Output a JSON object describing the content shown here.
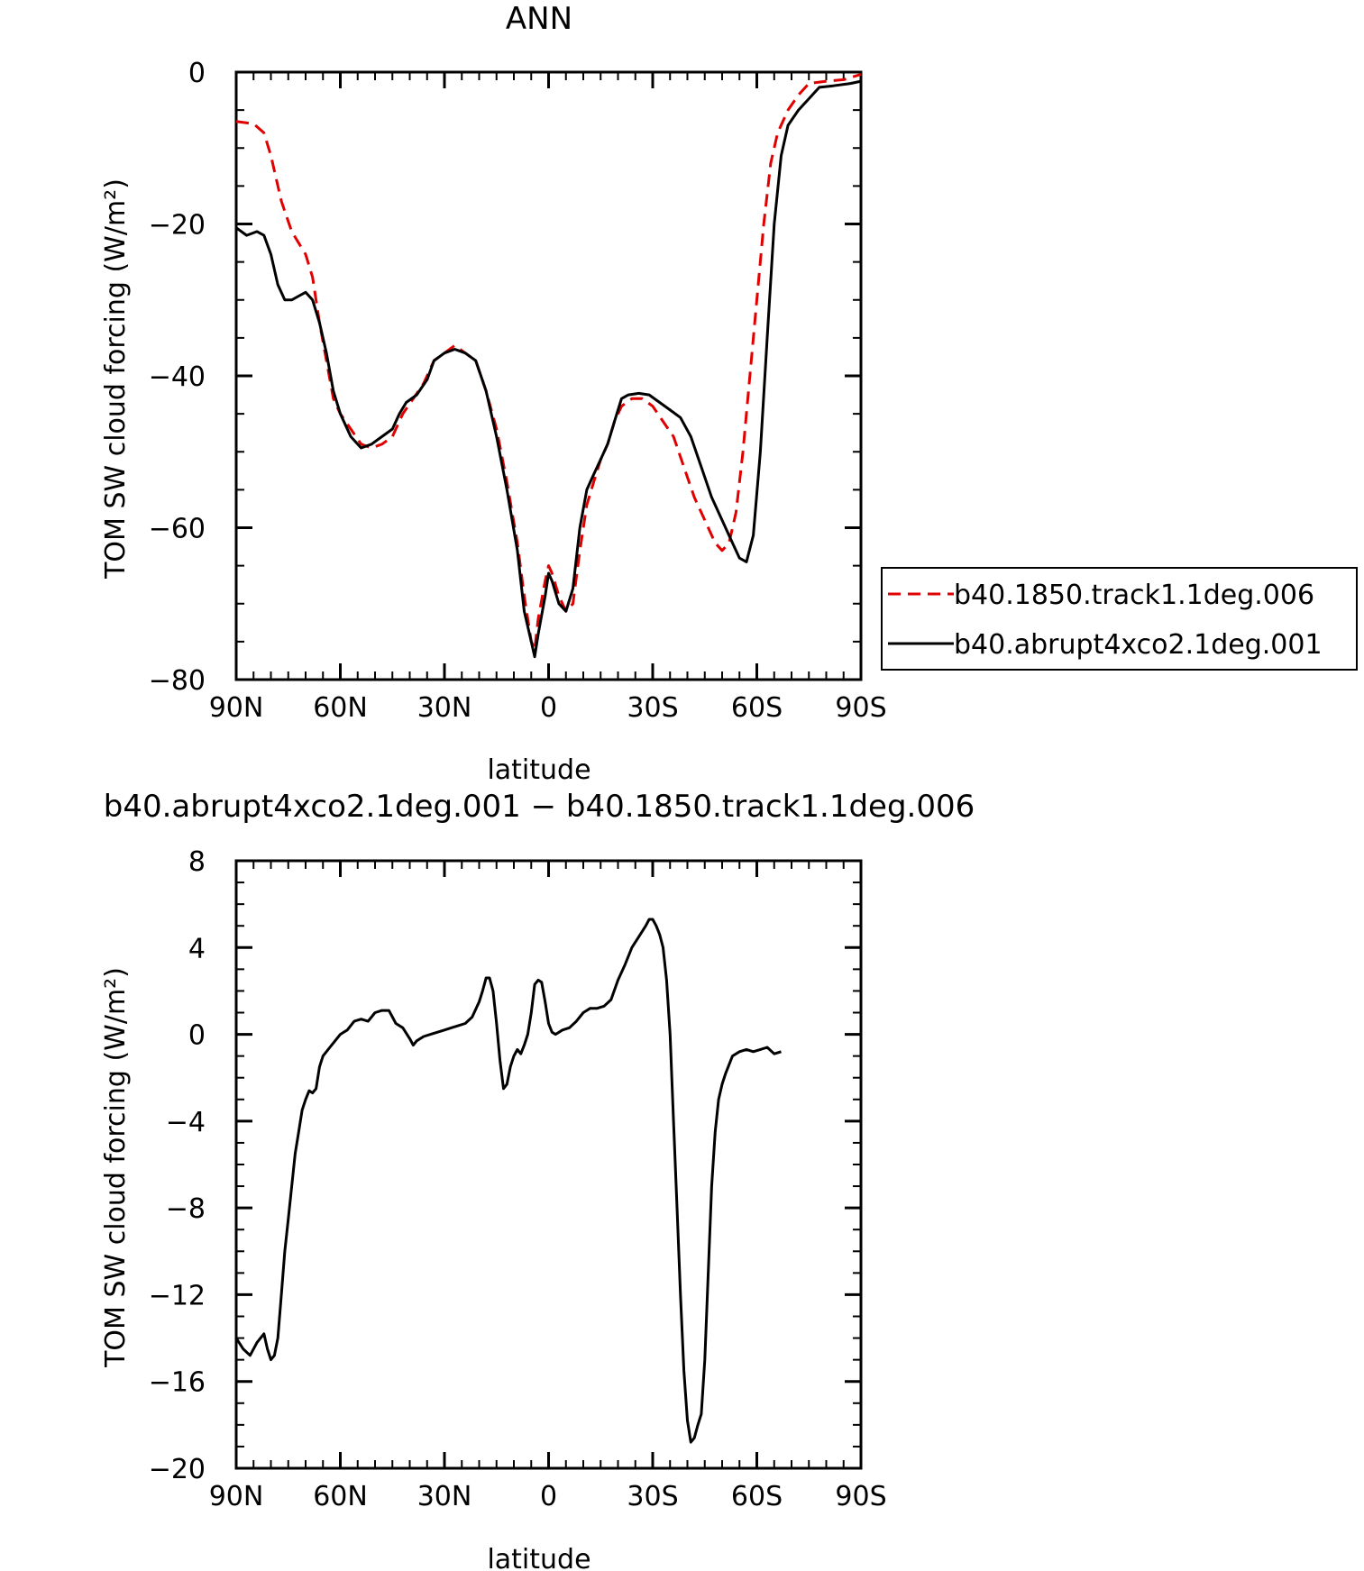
{
  "chart_data": [
    {
      "type": "line",
      "title": "ANN",
      "xlabel": "latitude",
      "ylabel": "TOM SW cloud forcing (W/m²)",
      "xlim": [
        90,
        -90
      ],
      "ylim": [
        -80,
        0
      ],
      "xticks": [
        {
          "v": 90,
          "label": "90N"
        },
        {
          "v": 60,
          "label": "60N"
        },
        {
          "v": 30,
          "label": "30N"
        },
        {
          "v": 0,
          "label": "0"
        },
        {
          "v": -30,
          "label": "30S"
        },
        {
          "v": -60,
          "label": "60S"
        },
        {
          "v": -90,
          "label": "90S"
        }
      ],
      "yticks": [
        {
          "v": 0,
          "label": "0"
        },
        {
          "v": -20,
          "label": "−20"
        },
        {
          "v": -40,
          "label": "−40"
        },
        {
          "v": -60,
          "label": "−60"
        },
        {
          "v": -80,
          "label": "−80"
        }
      ],
      "legend_position": "right",
      "series": [
        {
          "name": "b40.1850.track1.1deg.006",
          "color": "#e00000",
          "dash": "dashed",
          "points": [
            [
              90,
              -6.5
            ],
            [
              85,
              -6.8
            ],
            [
              82,
              -8
            ],
            [
              80,
              -11
            ],
            [
              77,
              -17
            ],
            [
              74,
              -21
            ],
            [
              70,
              -24
            ],
            [
              68,
              -27
            ],
            [
              66,
              -33
            ],
            [
              64,
              -38
            ],
            [
              62,
              -43
            ],
            [
              60,
              -45
            ],
            [
              57,
              -47
            ],
            [
              54,
              -49
            ],
            [
              51,
              -49.5
            ],
            [
              48,
              -49
            ],
            [
              45,
              -48
            ],
            [
              42,
              -45
            ],
            [
              39,
              -43
            ],
            [
              36,
              -41
            ],
            [
              33,
              -38
            ],
            [
              30,
              -37
            ],
            [
              27,
              -36
            ],
            [
              24,
              -37
            ],
            [
              21,
              -38
            ],
            [
              18,
              -42
            ],
            [
              15,
              -47
            ],
            [
              12,
              -54
            ],
            [
              9,
              -62
            ],
            [
              7,
              -69
            ],
            [
              5,
              -75
            ],
            [
              4,
              -76
            ],
            [
              3,
              -72
            ],
            [
              1,
              -67
            ],
            [
              0,
              -65
            ],
            [
              -1,
              -66
            ],
            [
              -3,
              -69
            ],
            [
              -5,
              -71
            ],
            [
              -7,
              -70
            ],
            [
              -9,
              -63
            ],
            [
              -11,
              -57
            ],
            [
              -13,
              -54
            ],
            [
              -15,
              -51
            ],
            [
              -17,
              -49
            ],
            [
              -19,
              -46
            ],
            [
              -21,
              -44
            ],
            [
              -24,
              -43
            ],
            [
              -27,
              -43
            ],
            [
              -30,
              -44
            ],
            [
              -33,
              -46
            ],
            [
              -36,
              -48
            ],
            [
              -39,
              -52
            ],
            [
              -42,
              -56
            ],
            [
              -45,
              -59
            ],
            [
              -48,
              -62
            ],
            [
              -50,
              -63
            ],
            [
              -52,
              -62
            ],
            [
              -54,
              -58
            ],
            [
              -56,
              -50
            ],
            [
              -58,
              -40
            ],
            [
              -60,
              -30
            ],
            [
              -62,
              -20
            ],
            [
              -64,
              -12
            ],
            [
              -66,
              -8
            ],
            [
              -69,
              -5
            ],
            [
              -72,
              -3
            ],
            [
              -75,
              -1.5
            ],
            [
              -80,
              -1.2
            ],
            [
              -85,
              -1
            ],
            [
              -90,
              -0.3
            ]
          ]
        },
        {
          "name": "b40.abrupt4xco2.1deg.001",
          "color": "#000000",
          "dash": "solid",
          "points": [
            [
              90,
              -20.5
            ],
            [
              87,
              -21.5
            ],
            [
              84,
              -21
            ],
            [
              82,
              -21.5
            ],
            [
              80,
              -24
            ],
            [
              78,
              -28
            ],
            [
              76,
              -30
            ],
            [
              74,
              -30
            ],
            [
              72,
              -29.5
            ],
            [
              70,
              -29
            ],
            [
              68,
              -30
            ],
            [
              66,
              -33
            ],
            [
              64,
              -37
            ],
            [
              62,
              -42
            ],
            [
              60,
              -45
            ],
            [
              57,
              -48
            ],
            [
              54,
              -49.5
            ],
            [
              51,
              -49
            ],
            [
              48,
              -48
            ],
            [
              45,
              -47
            ],
            [
              43,
              -45
            ],
            [
              41,
              -43.5
            ],
            [
              38,
              -42.5
            ],
            [
              35,
              -40.5
            ],
            [
              33,
              -38
            ],
            [
              30,
              -37
            ],
            [
              27,
              -36.5
            ],
            [
              24,
              -37
            ],
            [
              21,
              -38
            ],
            [
              18,
              -42
            ],
            [
              15,
              -48
            ],
            [
              12,
              -55
            ],
            [
              9,
              -63
            ],
            [
              7,
              -71
            ],
            [
              5,
              -75
            ],
            [
              4,
              -77
            ],
            [
              3,
              -74
            ],
            [
              1,
              -69
            ],
            [
              0,
              -66
            ],
            [
              -1,
              -67
            ],
            [
              -3,
              -70
            ],
            [
              -5,
              -71
            ],
            [
              -7,
              -68
            ],
            [
              -9,
              -60
            ],
            [
              -11,
              -55
            ],
            [
              -13,
              -53
            ],
            [
              -15,
              -51
            ],
            [
              -17,
              -49
            ],
            [
              -19,
              -46
            ],
            [
              -21,
              -43
            ],
            [
              -23,
              -42.5
            ],
            [
              -26,
              -42.3
            ],
            [
              -29,
              -42.5
            ],
            [
              -32,
              -43.5
            ],
            [
              -35,
              -44.5
            ],
            [
              -38,
              -45.5
            ],
            [
              -41,
              -48
            ],
            [
              -44,
              -52
            ],
            [
              -47,
              -56
            ],
            [
              -50,
              -59
            ],
            [
              -53,
              -62
            ],
            [
              -55,
              -64
            ],
            [
              -57,
              -64.5
            ],
            [
              -59,
              -61
            ],
            [
              -61,
              -50
            ],
            [
              -63,
              -35
            ],
            [
              -65,
              -20
            ],
            [
              -67,
              -11
            ],
            [
              -69,
              -7
            ],
            [
              -72,
              -5
            ],
            [
              -75,
              -3.5
            ],
            [
              -78,
              -2
            ],
            [
              -82,
              -1.8
            ],
            [
              -87,
              -1.5
            ],
            [
              -90,
              -1.2
            ]
          ]
        }
      ]
    },
    {
      "type": "line",
      "title": "b40.abrupt4xco2.1deg.001 − b40.1850.track1.1deg.006",
      "xlabel": "latitude",
      "ylabel": "TOM SW cloud forcing (W/m²)",
      "xlim": [
        90,
        -90
      ],
      "ylim": [
        -20,
        8
      ],
      "xticks": [
        {
          "v": 90,
          "label": "90N"
        },
        {
          "v": 60,
          "label": "60N"
        },
        {
          "v": 30,
          "label": "30N"
        },
        {
          "v": 0,
          "label": "0"
        },
        {
          "v": -30,
          "label": "30S"
        },
        {
          "v": -60,
          "label": "60S"
        },
        {
          "v": -90,
          "label": "90S"
        }
      ],
      "yticks": [
        {
          "v": 8,
          "label": "8"
        },
        {
          "v": 4,
          "label": "4"
        },
        {
          "v": 0,
          "label": "0"
        },
        {
          "v": -4,
          "label": "−4"
        },
        {
          "v": -8,
          "label": "−8"
        },
        {
          "v": -12,
          "label": "−12"
        },
        {
          "v": -16,
          "label": "−16"
        },
        {
          "v": -20,
          "label": "−20"
        }
      ],
      "series": [
        {
          "color": "#000000",
          "dash": "solid",
          "points": [
            [
              90,
              -14
            ],
            [
              88,
              -14.5
            ],
            [
              86,
              -14.8
            ],
            [
              84,
              -14.2
            ],
            [
              82,
              -13.8
            ],
            [
              81,
              -14.5
            ],
            [
              80,
              -15
            ],
            [
              79,
              -14.8
            ],
            [
              78,
              -14
            ],
            [
              77,
              -12
            ],
            [
              76,
              -10
            ],
            [
              75,
              -8.5
            ],
            [
              74,
              -7
            ],
            [
              73,
              -5.5
            ],
            [
              72,
              -4.5
            ],
            [
              71,
              -3.5
            ],
            [
              70,
              -3
            ],
            [
              69,
              -2.6
            ],
            [
              68,
              -2.7
            ],
            [
              67,
              -2.5
            ],
            [
              66,
              -1.5
            ],
            [
              65,
              -1
            ],
            [
              63,
              -0.6
            ],
            [
              61,
              -0.2
            ],
            [
              60,
              0
            ],
            [
              58,
              0.2
            ],
            [
              56,
              0.6
            ],
            [
              54,
              0.7
            ],
            [
              52,
              0.6
            ],
            [
              50,
              1
            ],
            [
              48,
              1.1
            ],
            [
              46,
              1.1
            ],
            [
              44,
              0.5
            ],
            [
              42,
              0.3
            ],
            [
              40,
              -0.2
            ],
            [
              39,
              -0.5
            ],
            [
              38,
              -0.3
            ],
            [
              36,
              -0.1
            ],
            [
              34,
              0
            ],
            [
              32,
              0.1
            ],
            [
              30,
              0.2
            ],
            [
              28,
              0.3
            ],
            [
              26,
              0.4
            ],
            [
              24,
              0.5
            ],
            [
              22,
              0.8
            ],
            [
              20,
              1.5
            ],
            [
              19,
              2
            ],
            [
              18,
              2.6
            ],
            [
              17,
              2.6
            ],
            [
              16,
              2
            ],
            [
              15,
              0.5
            ],
            [
              14,
              -1.2
            ],
            [
              13,
              -2.5
            ],
            [
              12,
              -2.3
            ],
            [
              11,
              -1.5
            ],
            [
              10,
              -1
            ],
            [
              9,
              -0.7
            ],
            [
              8,
              -0.9
            ],
            [
              7,
              -0.5
            ],
            [
              6,
              0
            ],
            [
              5,
              1
            ],
            [
              4,
              2.3
            ],
            [
              3,
              2.5
            ],
            [
              2,
              2.4
            ],
            [
              1,
              1.5
            ],
            [
              0,
              0.5
            ],
            [
              -1,
              0.1
            ],
            [
              -2,
              0
            ],
            [
              -4,
              0.2
            ],
            [
              -6,
              0.3
            ],
            [
              -8,
              0.6
            ],
            [
              -10,
              1
            ],
            [
              -12,
              1.2
            ],
            [
              -14,
              1.2
            ],
            [
              -16,
              1.3
            ],
            [
              -18,
              1.6
            ],
            [
              -20,
              2.5
            ],
            [
              -22,
              3.2
            ],
            [
              -24,
              4
            ],
            [
              -26,
              4.5
            ],
            [
              -28,
              5
            ],
            [
              -29,
              5.3
            ],
            [
              -30,
              5.3
            ],
            [
              -31,
              5
            ],
            [
              -32,
              4.6
            ],
            [
              -33,
              4
            ],
            [
              -34,
              2.5
            ],
            [
              -35,
              0
            ],
            [
              -36,
              -4
            ],
            [
              -37,
              -8
            ],
            [
              -38,
              -12
            ],
            [
              -39,
              -15.5
            ],
            [
              -40,
              -17.8
            ],
            [
              -41,
              -18.8
            ],
            [
              -42,
              -18.6
            ],
            [
              -43,
              -18
            ],
            [
              -44,
              -17.5
            ],
            [
              -45,
              -15
            ],
            [
              -46,
              -11
            ],
            [
              -47,
              -7
            ],
            [
              -48,
              -4.5
            ],
            [
              -49,
              -3
            ],
            [
              -50,
              -2.3
            ],
            [
              -51,
              -1.8
            ],
            [
              -53,
              -1
            ],
            [
              -55,
              -0.8
            ],
            [
              -57,
              -0.7
            ],
            [
              -59,
              -0.8
            ],
            [
              -61,
              -0.7
            ],
            [
              -63,
              -0.6
            ],
            [
              -65,
              -0.9
            ],
            [
              -67,
              -0.8
            ]
          ]
        }
      ]
    }
  ]
}
